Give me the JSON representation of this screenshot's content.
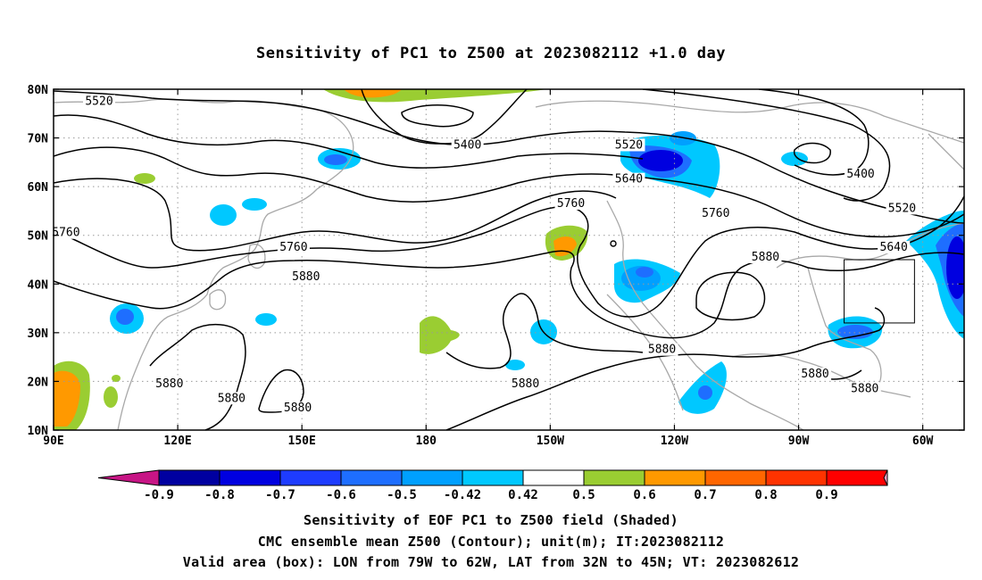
{
  "title": "Sensitivity of PC1 to Z500 at 2023082112 +1.0 day",
  "lat_labels": [
    "80N",
    "70N",
    "60N",
    "50N",
    "40N",
    "30N",
    "20N",
    "10N"
  ],
  "lon_labels": [
    "90E",
    "120E",
    "150E",
    "180",
    "150W",
    "120W",
    "90W",
    "60W"
  ],
  "contour_labels": [
    {
      "text": "5520",
      "lon": 101,
      "lat": 77
    },
    {
      "text": "5400",
      "lon": 190,
      "lat": 68
    },
    {
      "text": "5520",
      "lon": 229,
      "lat": 68
    },
    {
      "text": "5640",
      "lon": 229,
      "lat": 61
    },
    {
      "text": "5760",
      "lon": 215,
      "lat": 56
    },
    {
      "text": "5760",
      "lon": 93,
      "lat": 50
    },
    {
      "text": "5760",
      "lon": 148,
      "lat": 47
    },
    {
      "text": "5880",
      "lon": 151,
      "lat": 41
    },
    {
      "text": "5760",
      "lon": 250,
      "lat": 54
    },
    {
      "text": "5880",
      "lon": 262,
      "lat": 45
    },
    {
      "text": "5400",
      "lon": 285,
      "lat": 62
    },
    {
      "text": "5520",
      "lon": 295,
      "lat": 55
    },
    {
      "text": "5640",
      "lon": 293,
      "lat": 47
    },
    {
      "text": "5880",
      "lon": 118,
      "lat": 19
    },
    {
      "text": "5880",
      "lon": 133,
      "lat": 16
    },
    {
      "text": "5880",
      "lon": 149,
      "lat": 14
    },
    {
      "text": "5880",
      "lon": 204,
      "lat": 19
    },
    {
      "text": "5880",
      "lon": 237,
      "lat": 26
    },
    {
      "text": "5880",
      "lon": 274,
      "lat": 21
    },
    {
      "text": "5880",
      "lon": 286,
      "lat": 18
    }
  ],
  "valid_box": {
    "lon_min": -79,
    "lon_max": -62,
    "lat_min": 32,
    "lat_max": 45
  },
  "colorbar": {
    "labels": [
      "-0.9",
      "-0.8",
      "-0.7",
      "-0.6",
      "-0.5",
      "-0.42",
      "0.42",
      "0.5",
      "0.6",
      "0.7",
      "0.8",
      "0.9"
    ],
    "colors": [
      "#0000a0",
      "#0000e0",
      "#1e3cff",
      "#1e6eff",
      "#00a0ff",
      "#00c8ff",
      "#ffffff",
      "#9acd32",
      "#ff9900",
      "#ff6600",
      "#ff3300",
      "#ff0000"
    ],
    "left_arrow_color": "#c71585",
    "right_arrow_color": "#f4a0c8"
  },
  "captions": [
    "Sensitivity of EOF PC1 to Z500 field (Shaded)",
    "CMC ensemble mean Z500 (Contour); unit(m); IT:2023082112",
    "Valid area (box): LON from 79W to 62W, LAT from 32N to 45N; VT: 2023082612"
  ]
}
